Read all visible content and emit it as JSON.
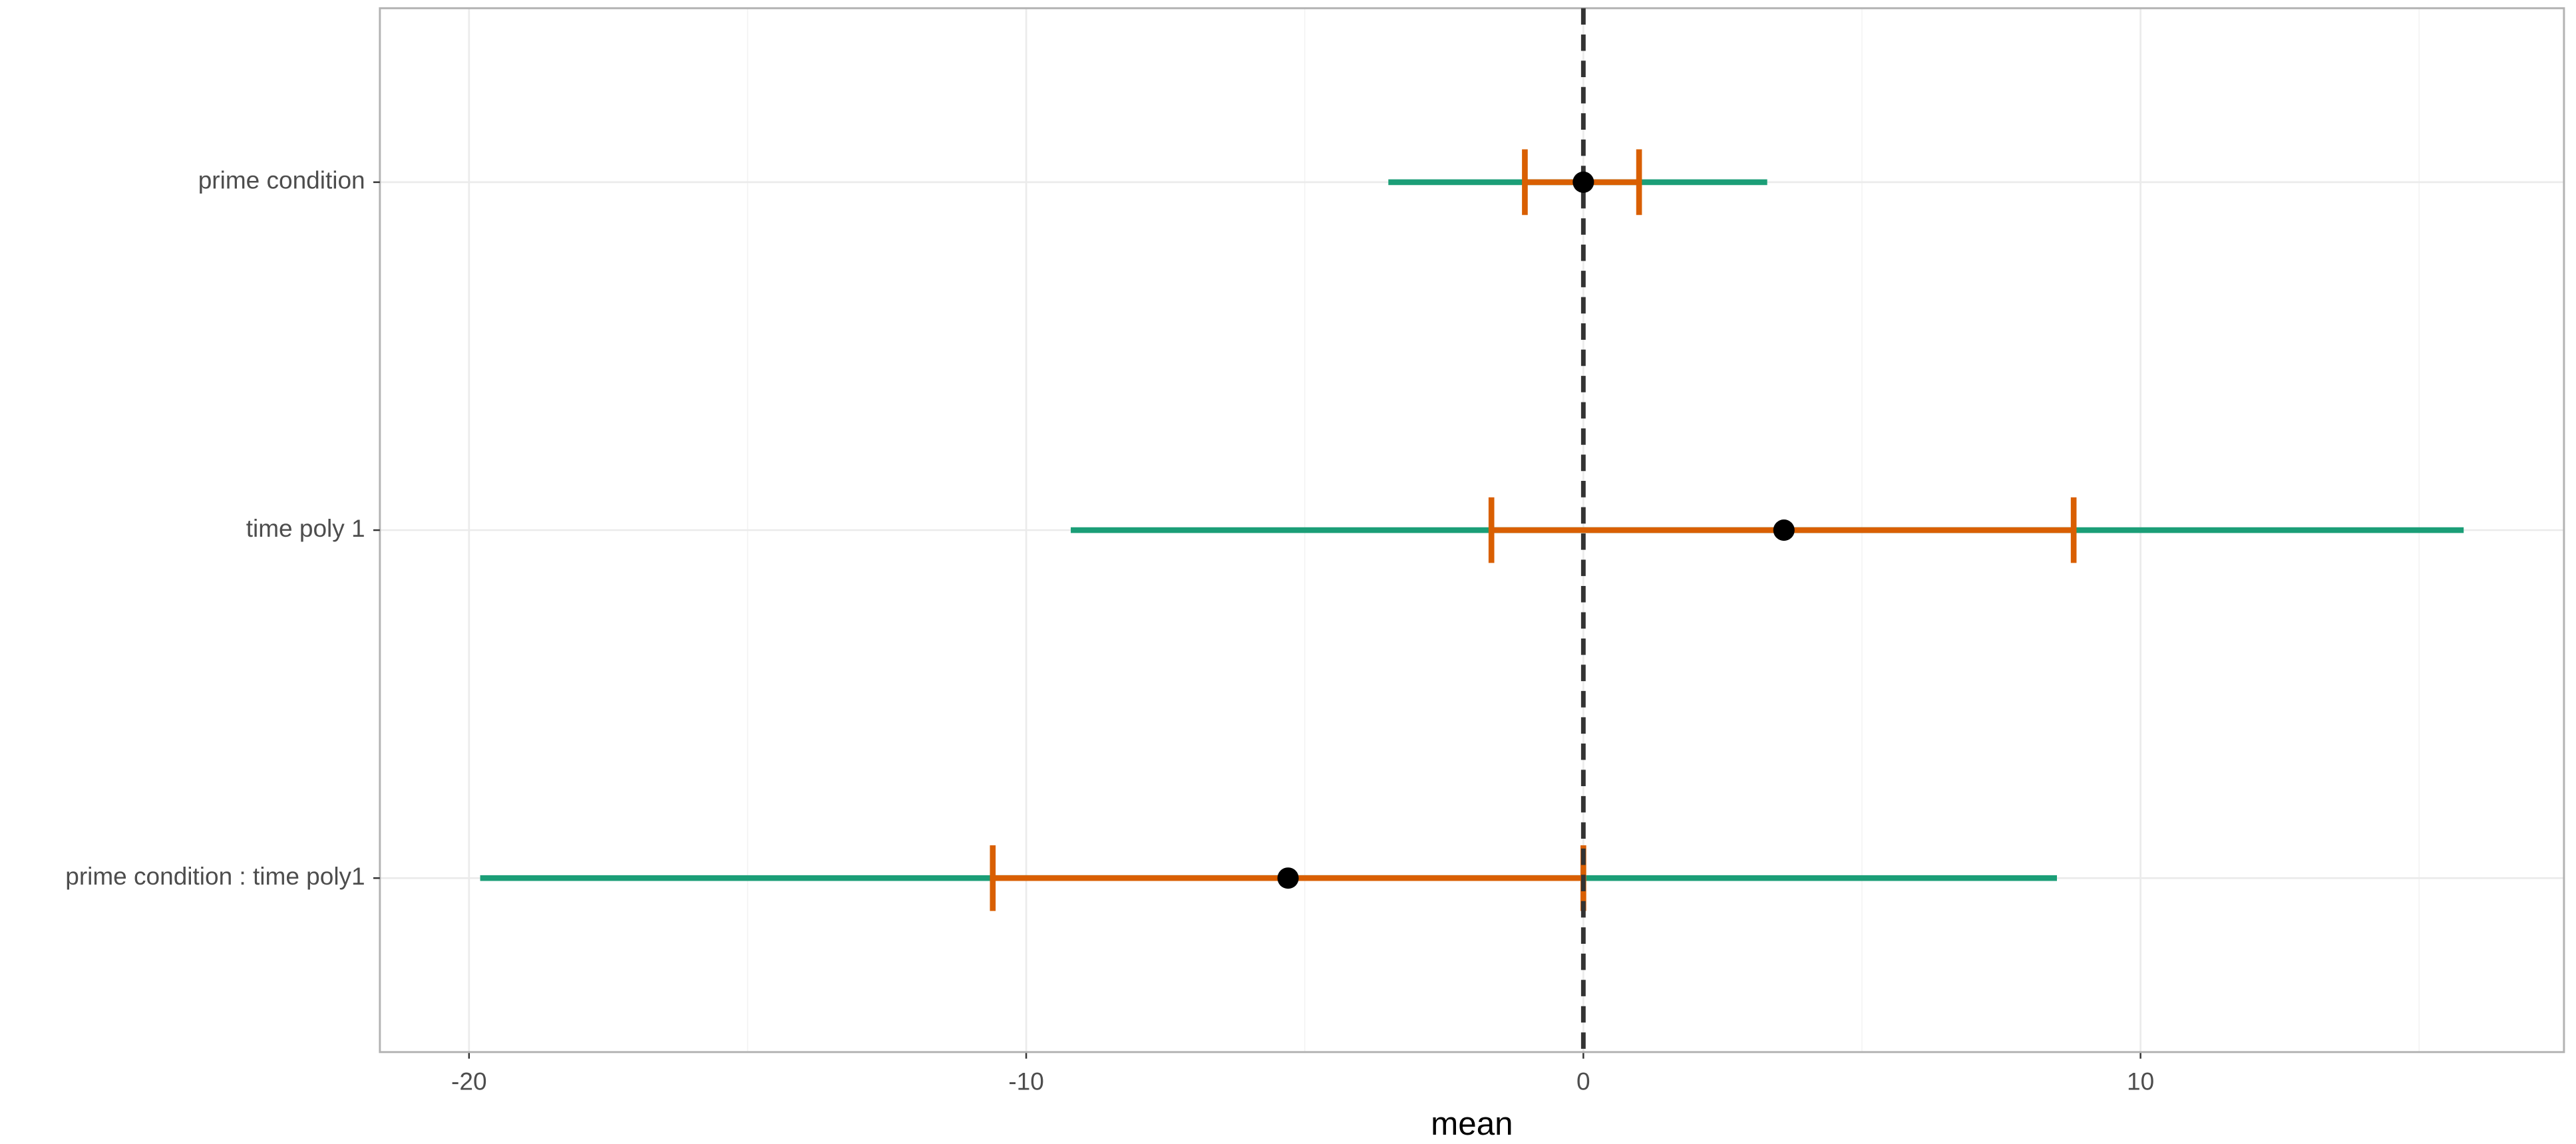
{
  "chart_data": {
    "type": "forest",
    "xlabel": "mean",
    "categories": [
      "prime condition",
      "time poly 1",
      "prime condition : time poly1"
    ],
    "values": [
      0,
      3.6,
      -5.3
    ],
    "inner_low": [
      -1.05,
      -1.65,
      -10.6
    ],
    "inner_high": [
      1.0,
      8.8,
      0
    ],
    "outer_low": [
      -3.5,
      -9.2,
      -19.8
    ],
    "outer_high": [
      3.3,
      15.8,
      8.5
    ],
    "inner_color": "#d95f02",
    "outer_color": "#1b9e77",
    "point_color": "#000000",
    "ref_line": 0,
    "xlim": [
      -21.6,
      17.6
    ],
    "xticks": [
      -20,
      -10,
      0,
      10
    ],
    "grid": true
  }
}
